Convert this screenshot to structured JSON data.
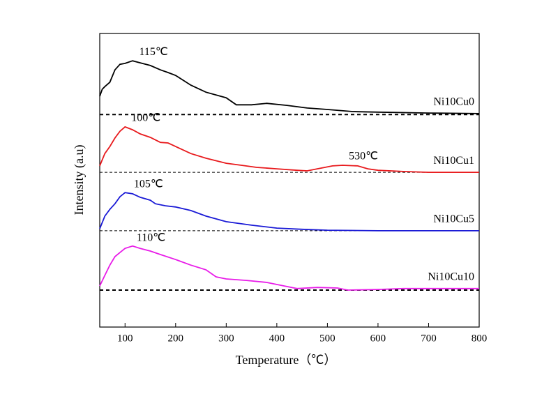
{
  "chart_data": {
    "type": "line",
    "x_label": "Temperature（℃）",
    "y_label": "Intensity (a.u)",
    "xlim": [
      50,
      800
    ],
    "xticks": [
      100,
      200,
      300,
      400,
      500,
      600,
      700,
      800
    ],
    "ylim": [
      0,
      10
    ],
    "grid": false,
    "series": [
      {
        "name": "Ni10Cu0",
        "color": "#000000",
        "baseline": 7.24,
        "x": [
          50,
          55,
          60,
          70,
          80,
          90,
          100,
          115,
          130,
          150,
          170,
          185,
          200,
          230,
          260,
          300,
          320,
          350,
          380,
          420,
          460,
          500,
          550,
          600,
          700,
          800
        ],
        "values": [
          7.86,
          8.1,
          8.19,
          8.34,
          8.76,
          8.95,
          8.98,
          9.07,
          9.0,
          8.91,
          8.76,
          8.67,
          8.57,
          8.24,
          8.0,
          7.81,
          7.57,
          7.57,
          7.62,
          7.55,
          7.46,
          7.41,
          7.34,
          7.32,
          7.29,
          7.27
        ],
        "peaks": [
          {
            "x": 115,
            "label": "115℃"
          }
        ]
      },
      {
        "name": "Ni10Cu1",
        "color": "#e8191c",
        "baseline": 5.27,
        "x": [
          50,
          60,
          70,
          80,
          90,
          100,
          115,
          130,
          150,
          170,
          185,
          200,
          230,
          260,
          300,
          330,
          360,
          400,
          440,
          460,
          480,
          510,
          530,
          560,
          580,
          600,
          650,
          700,
          800
        ],
        "values": [
          5.49,
          5.91,
          6.15,
          6.44,
          6.67,
          6.82,
          6.72,
          6.58,
          6.46,
          6.29,
          6.27,
          6.15,
          5.91,
          5.75,
          5.58,
          5.51,
          5.44,
          5.39,
          5.34,
          5.32,
          5.39,
          5.49,
          5.51,
          5.49,
          5.39,
          5.34,
          5.3,
          5.27,
          5.27
        ],
        "peaks": [
          {
            "x": 100,
            "label": "100℃"
          },
          {
            "x": 530,
            "label": "530℃"
          }
        ]
      },
      {
        "name": "Ni10Cu5",
        "color": "#1a1ad6",
        "baseline": 3.28,
        "x": [
          50,
          60,
          70,
          80,
          90,
          100,
          115,
          130,
          150,
          160,
          180,
          200,
          230,
          260,
          300,
          350,
          400,
          450,
          500,
          600,
          800
        ],
        "values": [
          3.35,
          3.78,
          4.01,
          4.2,
          4.44,
          4.58,
          4.54,
          4.42,
          4.32,
          4.2,
          4.13,
          4.09,
          3.97,
          3.78,
          3.59,
          3.47,
          3.37,
          3.33,
          3.3,
          3.28,
          3.28
        ],
        "peaks": [
          {
            "x": 105,
            "label": "105℃"
          }
        ]
      },
      {
        "name": "Ni10Cu10",
        "color": "#e81ce8",
        "baseline": 1.26,
        "x": [
          50,
          60,
          70,
          80,
          90,
          100,
          115,
          130,
          150,
          170,
          200,
          230,
          260,
          280,
          300,
          340,
          380,
          420,
          440,
          480,
          520,
          540,
          600,
          650,
          800
        ],
        "values": [
          1.4,
          1.76,
          2.11,
          2.4,
          2.54,
          2.68,
          2.76,
          2.68,
          2.59,
          2.47,
          2.3,
          2.11,
          1.95,
          1.71,
          1.64,
          1.59,
          1.52,
          1.38,
          1.31,
          1.35,
          1.33,
          1.26,
          1.28,
          1.31,
          1.31
        ],
        "peaks": [
          {
            "x": 110,
            "label": "110℃"
          }
        ]
      }
    ]
  }
}
